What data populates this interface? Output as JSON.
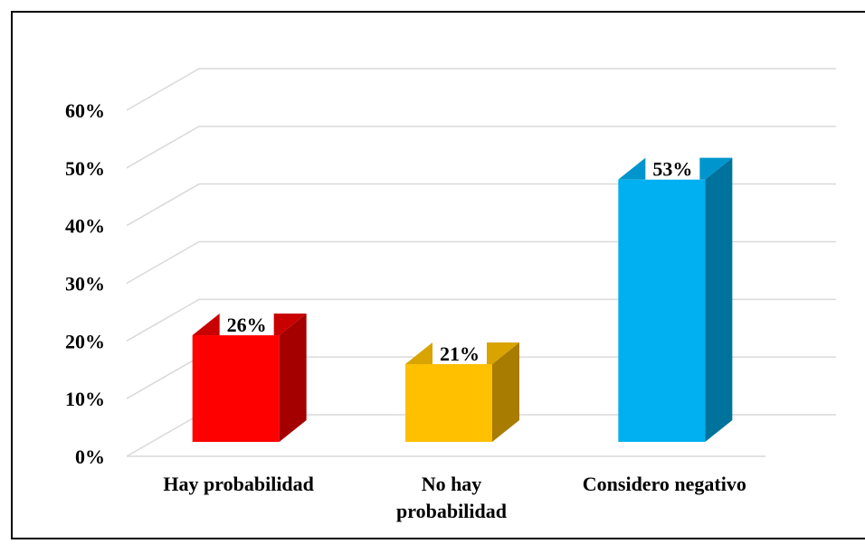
{
  "chart_data": {
    "type": "bar",
    "title": "",
    "xlabel": "",
    "ylabel": "",
    "categories": [
      "Hay probabilidad",
      "No hay probabilidad",
      "Considero negativo"
    ],
    "category_lines": [
      [
        "Hay probabilidad"
      ],
      [
        "No hay",
        "probabilidad"
      ],
      [
        "Considero negativo"
      ]
    ],
    "values": [
      26,
      21,
      53
    ],
    "data_labels": [
      "26%",
      "21%",
      "53%"
    ],
    "yticks": [
      "0%",
      "10%",
      "20%",
      "30%",
      "40%",
      "50%",
      "60%"
    ],
    "ylim": [
      0,
      60
    ],
    "grid": true,
    "style_3d": true,
    "legend": "none",
    "colors": [
      {
        "front": "#ff0000",
        "side": "#a50000",
        "top": "#c80000"
      },
      {
        "front": "#ffc000",
        "side": "#a87c00",
        "top": "#d9a300"
      },
      {
        "front": "#00b0f0",
        "side": "#00739c",
        "top": "#0095cc"
      }
    ]
  }
}
